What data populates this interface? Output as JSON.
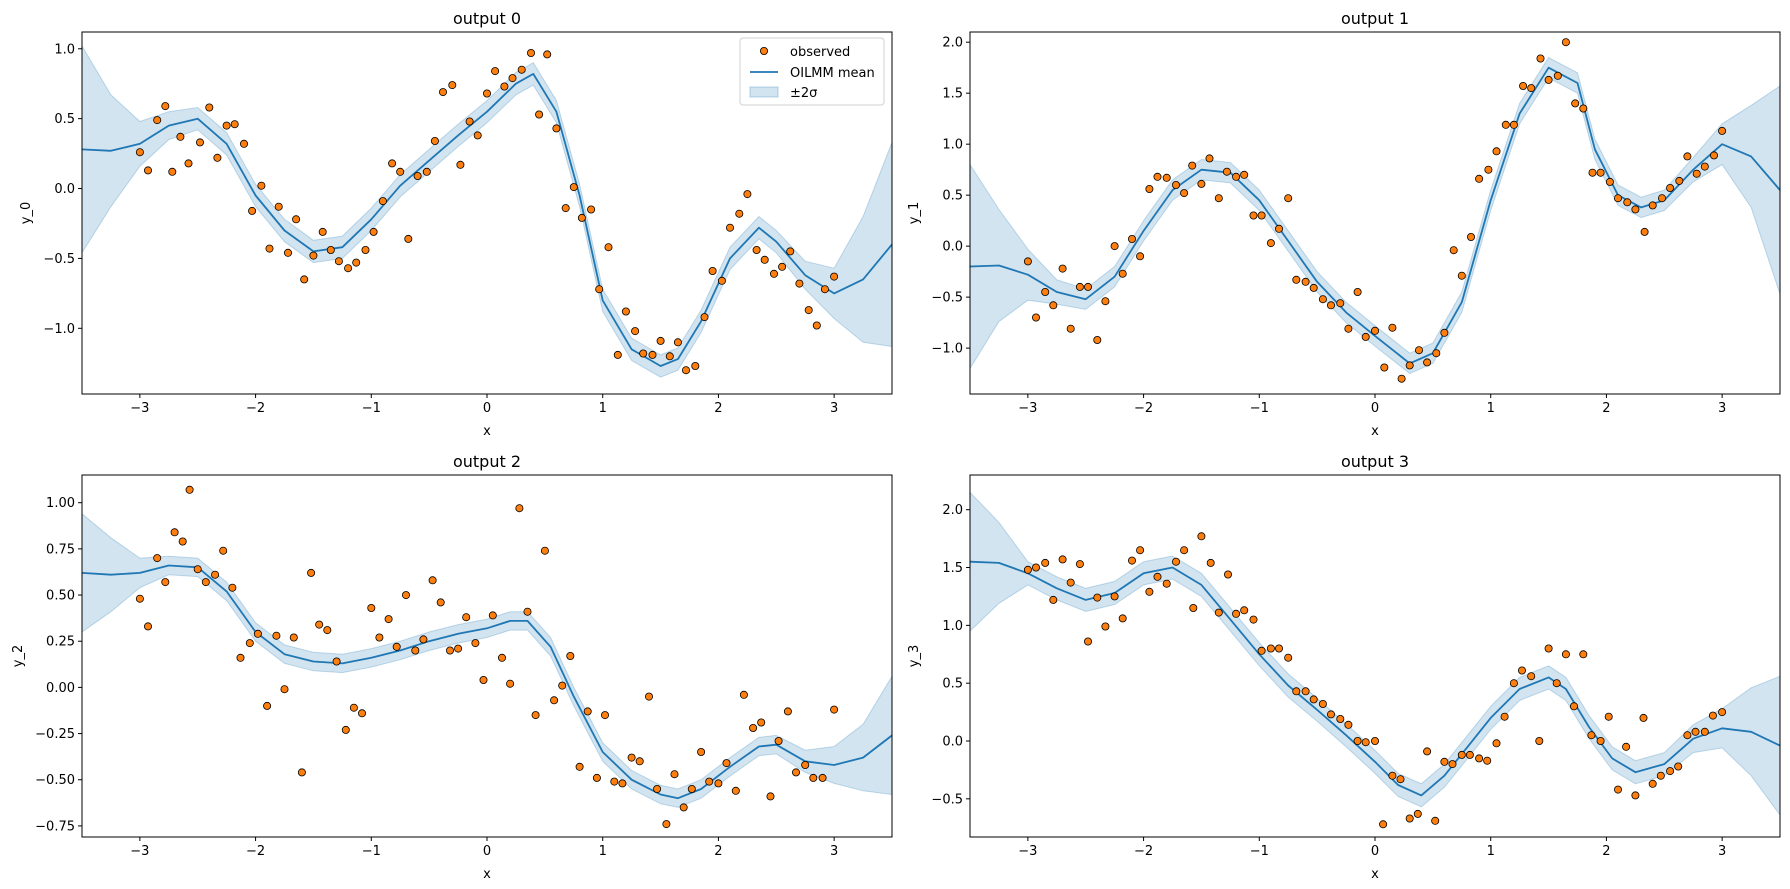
{
  "legend": {
    "observed": "observed",
    "mean": "OILMM mean",
    "band": "±2σ"
  },
  "colors": {
    "mean": "#1f77b4",
    "band": "#1f77b4",
    "observed_fill": "#ff7f0e",
    "observed_edge": "#000000"
  },
  "chart_data": [
    {
      "type": "line",
      "title": "output 0",
      "xlabel": "x",
      "ylabel": "y_0",
      "xlim": [
        -3.5,
        3.5
      ],
      "ylim": [
        -1.47,
        1.12
      ],
      "xticks": [
        -3,
        -2,
        -1,
        0,
        1,
        2,
        3
      ],
      "yticks": [
        -1.0,
        -0.5,
        0.0,
        0.5,
        1.0
      ],
      "ytick_labels": [
        "−1.0",
        "−0.5",
        "0.0",
        "0.5",
        "1.0"
      ],
      "legend_position": "upper right",
      "mean": {
        "x": [
          -3.5,
          -3.25,
          -3.0,
          -2.75,
          -2.5,
          -2.25,
          -2.0,
          -1.75,
          -1.5,
          -1.25,
          -1.0,
          -0.75,
          -0.5,
          -0.25,
          0.0,
          0.25,
          0.4,
          0.6,
          0.8,
          1.0,
          1.25,
          1.5,
          1.65,
          1.85,
          2.1,
          2.35,
          2.5,
          2.75,
          3.0,
          3.25,
          3.5
        ],
        "y": [
          0.28,
          0.27,
          0.32,
          0.45,
          0.5,
          0.32,
          -0.05,
          -0.3,
          -0.45,
          -0.42,
          -0.22,
          0.02,
          0.2,
          0.38,
          0.55,
          0.75,
          0.82,
          0.55,
          -0.05,
          -0.8,
          -1.15,
          -1.27,
          -1.22,
          -0.95,
          -0.5,
          -0.28,
          -0.38,
          -0.62,
          -0.75,
          -0.65,
          -0.4
        ]
      },
      "band_halfwidth": [
        0.74,
        0.4,
        0.16,
        0.1,
        0.08,
        0.08,
        0.08,
        0.08,
        0.08,
        0.08,
        0.08,
        0.08,
        0.08,
        0.08,
        0.08,
        0.08,
        0.08,
        0.08,
        0.08,
        0.08,
        0.08,
        0.08,
        0.08,
        0.08,
        0.08,
        0.08,
        0.08,
        0.1,
        0.18,
        0.45,
        0.73
      ],
      "points": {
        "x": [
          -3.0,
          -2.93,
          -2.85,
          -2.78,
          -2.72,
          -2.65,
          -2.58,
          -2.48,
          -2.4,
          -2.33,
          -2.25,
          -2.18,
          -2.1,
          -2.03,
          -1.95,
          -1.88,
          -1.8,
          -1.72,
          -1.65,
          -1.58,
          -1.5,
          -1.42,
          -1.35,
          -1.28,
          -1.2,
          -1.13,
          -1.05,
          -0.98,
          -0.9,
          -0.82,
          -0.75,
          -0.68,
          -0.6,
          -0.52,
          -0.45,
          -0.38,
          -0.3,
          -0.23,
          -0.15,
          -0.08,
          0.0,
          0.07,
          0.15,
          0.22,
          0.3,
          0.38,
          0.45,
          0.52,
          0.6,
          0.68,
          0.75,
          0.82,
          0.9,
          0.97,
          1.05,
          1.13,
          1.2,
          1.28,
          1.35,
          1.43,
          1.5,
          1.58,
          1.65,
          1.72,
          1.8,
          1.88,
          1.95,
          2.03,
          2.1,
          2.18,
          2.25,
          2.33,
          2.4,
          2.48,
          2.55,
          2.62,
          2.7,
          2.78,
          2.85,
          2.92,
          3.0
        ],
        "y": [
          0.26,
          0.13,
          0.49,
          0.59,
          0.12,
          0.37,
          0.18,
          0.33,
          0.58,
          0.22,
          0.45,
          0.46,
          0.32,
          -0.16,
          0.02,
          -0.43,
          -0.13,
          -0.46,
          -0.22,
          -0.65,
          -0.48,
          -0.31,
          -0.44,
          -0.52,
          -0.57,
          -0.53,
          -0.44,
          -0.31,
          -0.09,
          0.18,
          0.12,
          -0.36,
          0.09,
          0.12,
          0.34,
          0.69,
          0.74,
          0.17,
          0.48,
          0.38,
          0.68,
          0.84,
          0.73,
          0.79,
          0.85,
          0.97,
          0.53,
          0.96,
          0.43,
          -0.14,
          0.01,
          -0.21,
          -0.15,
          -0.72,
          -0.42,
          -1.19,
          -0.88,
          -1.02,
          -1.18,
          -1.19,
          -1.09,
          -1.2,
          -1.1,
          -1.3,
          -1.27,
          -0.92,
          -0.59,
          -0.66,
          -0.28,
          -0.18,
          -0.04,
          -0.44,
          -0.51,
          -0.61,
          -0.56,
          -0.45,
          -0.68,
          -0.87,
          -0.98,
          -0.72,
          -0.63
        ]
      }
    },
    {
      "type": "line",
      "title": "output 1",
      "xlabel": "x",
      "ylabel": "y_1",
      "xlim": [
        -3.5,
        3.5
      ],
      "ylim": [
        -1.45,
        2.1
      ],
      "xticks": [
        -3,
        -2,
        -1,
        0,
        1,
        2,
        3
      ],
      "yticks": [
        -1.0,
        -0.5,
        0.0,
        0.5,
        1.0,
        1.5,
        2.0
      ],
      "ytick_labels": [
        "−1.0",
        "−0.5",
        "0.0",
        "0.5",
        "1.0",
        "1.5",
        "2.0"
      ],
      "mean": {
        "x": [
          -3.5,
          -3.25,
          -3.0,
          -2.75,
          -2.5,
          -2.25,
          -2.0,
          -1.75,
          -1.5,
          -1.25,
          -1.0,
          -0.75,
          -0.5,
          -0.25,
          0.0,
          0.3,
          0.5,
          0.75,
          1.0,
          1.25,
          1.5,
          1.75,
          1.9,
          2.1,
          2.3,
          2.5,
          2.75,
          3.0,
          3.25,
          3.5
        ],
        "y": [
          -0.2,
          -0.19,
          -0.28,
          -0.45,
          -0.52,
          -0.3,
          0.15,
          0.55,
          0.75,
          0.72,
          0.45,
          0.05,
          -0.35,
          -0.65,
          -0.88,
          -1.15,
          -1.05,
          -0.55,
          0.45,
          1.3,
          1.75,
          1.6,
          0.95,
          0.5,
          0.38,
          0.45,
          0.75,
          1.0,
          0.88,
          0.55
        ]
      },
      "band_halfwidth": [
        1.0,
        0.55,
        0.25,
        0.12,
        0.1,
        0.1,
        0.1,
        0.1,
        0.1,
        0.1,
        0.1,
        0.1,
        0.1,
        0.1,
        0.1,
        0.1,
        0.1,
        0.1,
        0.1,
        0.1,
        0.1,
        0.1,
        0.1,
        0.1,
        0.1,
        0.1,
        0.12,
        0.2,
        0.5,
        1.02
      ],
      "points": {
        "x": [
          -3.0,
          -2.93,
          -2.85,
          -2.78,
          -2.7,
          -2.63,
          -2.55,
          -2.48,
          -2.4,
          -2.33,
          -2.25,
          -2.18,
          -2.1,
          -2.03,
          -1.95,
          -1.88,
          -1.8,
          -1.72,
          -1.65,
          -1.58,
          -1.5,
          -1.43,
          -1.35,
          -1.28,
          -1.2,
          -1.13,
          -1.05,
          -0.98,
          -0.9,
          -0.83,
          -0.75,
          -0.68,
          -0.6,
          -0.53,
          -0.45,
          -0.38,
          -0.3,
          -0.23,
          -0.15,
          -0.08,
          0.0,
          0.08,
          0.15,
          0.23,
          0.3,
          0.38,
          0.45,
          0.53,
          0.6,
          0.68,
          0.75,
          0.83,
          0.9,
          0.98,
          1.05,
          1.13,
          1.2,
          1.28,
          1.35,
          1.43,
          1.5,
          1.58,
          1.65,
          1.73,
          1.8,
          1.88,
          1.95,
          2.03,
          2.1,
          2.18,
          2.25,
          2.33,
          2.4,
          2.48,
          2.55,
          2.63,
          2.7,
          2.78,
          2.85,
          2.93,
          3.0
        ],
        "y": [
          -0.15,
          -0.7,
          -0.45,
          -0.58,
          -0.22,
          -0.81,
          -0.4,
          -0.4,
          -0.92,
          -0.54,
          0.0,
          -0.27,
          0.07,
          -0.1,
          0.56,
          0.68,
          0.67,
          0.6,
          0.52,
          0.79,
          0.61,
          0.86,
          0.47,
          0.73,
          0.68,
          0.7,
          0.3,
          0.3,
          0.03,
          0.17,
          0.47,
          -0.33,
          -0.35,
          -0.41,
          -0.52,
          -0.58,
          -0.56,
          -0.81,
          -0.45,
          -0.89,
          -0.83,
          -1.19,
          -0.8,
          -1.3,
          -1.17,
          -1.02,
          -1.14,
          -1.05,
          -0.85,
          -0.04,
          -0.29,
          0.09,
          0.66,
          0.75,
          0.93,
          1.19,
          1.19,
          1.57,
          1.55,
          1.84,
          1.63,
          1.67,
          2.0,
          1.4,
          1.35,
          0.72,
          0.72,
          0.63,
          0.47,
          0.43,
          0.36,
          0.14,
          0.4,
          0.47,
          0.57,
          0.64,
          0.88,
          0.71,
          0.78,
          0.89,
          1.13
        ]
      }
    },
    {
      "type": "line",
      "title": "output 2",
      "xlabel": "x",
      "ylabel": "y_2",
      "xlim": [
        -3.5,
        3.5
      ],
      "ylim": [
        -0.81,
        1.15
      ],
      "xticks": [
        -3,
        -2,
        -1,
        0,
        1,
        2,
        3
      ],
      "yticks": [
        -0.75,
        -0.5,
        -0.25,
        0.0,
        0.25,
        0.5,
        0.75,
        1.0
      ],
      "ytick_labels": [
        "−0.75",
        "−0.50",
        "−0.25",
        "0.00",
        "0.25",
        "0.50",
        "0.75",
        "1.00"
      ],
      "mean": {
        "x": [
          -3.5,
          -3.25,
          -3.0,
          -2.75,
          -2.5,
          -2.25,
          -2.0,
          -1.75,
          -1.5,
          -1.25,
          -1.0,
          -0.75,
          -0.5,
          -0.25,
          0.0,
          0.2,
          0.35,
          0.55,
          0.75,
          1.0,
          1.25,
          1.5,
          1.65,
          1.85,
          2.1,
          2.35,
          2.5,
          2.75,
          3.0,
          3.25,
          3.5
        ],
        "y": [
          0.62,
          0.61,
          0.62,
          0.66,
          0.65,
          0.52,
          0.3,
          0.18,
          0.14,
          0.13,
          0.16,
          0.2,
          0.25,
          0.29,
          0.32,
          0.36,
          0.36,
          0.22,
          -0.05,
          -0.35,
          -0.5,
          -0.58,
          -0.6,
          -0.55,
          -0.43,
          -0.32,
          -0.31,
          -0.4,
          -0.42,
          -0.38,
          -0.26
        ]
      },
      "band_halfwidth": [
        0.32,
        0.2,
        0.08,
        0.05,
        0.05,
        0.05,
        0.05,
        0.05,
        0.05,
        0.05,
        0.05,
        0.05,
        0.05,
        0.05,
        0.05,
        0.05,
        0.05,
        0.05,
        0.05,
        0.05,
        0.05,
        0.05,
        0.05,
        0.05,
        0.05,
        0.05,
        0.05,
        0.06,
        0.1,
        0.18,
        0.32
      ],
      "points": {
        "x": [
          -3.0,
          -2.93,
          -2.85,
          -2.78,
          -2.7,
          -2.63,
          -2.57,
          -2.5,
          -2.43,
          -2.35,
          -2.28,
          -2.2,
          -2.13,
          -2.05,
          -1.98,
          -1.9,
          -1.82,
          -1.75,
          -1.67,
          -1.6,
          -1.52,
          -1.45,
          -1.38,
          -1.3,
          -1.22,
          -1.15,
          -1.08,
          -1.0,
          -0.93,
          -0.85,
          -0.78,
          -0.7,
          -0.62,
          -0.55,
          -0.47,
          -0.4,
          -0.32,
          -0.25,
          -0.18,
          -0.1,
          -0.03,
          0.05,
          0.13,
          0.2,
          0.28,
          0.35,
          0.42,
          0.5,
          0.58,
          0.65,
          0.72,
          0.8,
          0.87,
          0.95,
          1.02,
          1.1,
          1.17,
          1.25,
          1.32,
          1.4,
          1.47,
          1.55,
          1.62,
          1.7,
          1.77,
          1.85,
          1.92,
          2.0,
          2.07,
          2.15,
          2.22,
          2.3,
          2.37,
          2.45,
          2.52,
          2.6,
          2.67,
          2.75,
          2.82,
          2.9,
          3.0
        ],
        "y": [
          0.48,
          0.33,
          0.7,
          0.57,
          0.84,
          0.79,
          1.07,
          0.64,
          0.57,
          0.61,
          0.74,
          0.54,
          0.16,
          0.24,
          0.29,
          -0.1,
          0.28,
          -0.01,
          0.27,
          -0.46,
          0.62,
          0.34,
          0.31,
          0.14,
          -0.23,
          -0.11,
          -0.14,
          0.43,
          0.27,
          0.37,
          0.22,
          0.5,
          0.2,
          0.26,
          0.58,
          0.46,
          0.2,
          0.21,
          0.38,
          0.24,
          0.04,
          0.39,
          0.16,
          0.02,
          0.97,
          0.41,
          -0.15,
          0.74,
          -0.07,
          0.01,
          0.17,
          -0.43,
          -0.13,
          -0.49,
          -0.15,
          -0.51,
          -0.52,
          -0.38,
          -0.4,
          -0.05,
          -0.55,
          -0.74,
          -0.47,
          -0.65,
          -0.55,
          -0.35,
          -0.51,
          -0.52,
          -0.41,
          -0.56,
          -0.04,
          -0.22,
          -0.19,
          -0.59,
          -0.29,
          -0.13,
          -0.46,
          -0.42,
          -0.49,
          -0.49,
          -0.12
        ]
      }
    },
    {
      "type": "line",
      "title": "output 3",
      "xlabel": "x",
      "ylabel": "y_3",
      "xlim": [
        -3.5,
        3.5
      ],
      "ylim": [
        -0.83,
        2.3
      ],
      "xticks": [
        -3,
        -2,
        -1,
        0,
        1,
        2,
        3
      ],
      "yticks": [
        -0.5,
        0.0,
        0.5,
        1.0,
        1.5,
        2.0
      ],
      "ytick_labels": [
        "−0.5",
        "0.0",
        "0.5",
        "1.0",
        "1.5",
        "2.0"
      ],
      "mean": {
        "x": [
          -3.5,
          -3.25,
          -3.0,
          -2.75,
          -2.5,
          -2.25,
          -2.0,
          -1.75,
          -1.5,
          -1.25,
          -1.0,
          -0.75,
          -0.5,
          -0.25,
          0.0,
          0.2,
          0.4,
          0.6,
          0.8,
          1.0,
          1.25,
          1.5,
          1.65,
          1.85,
          2.05,
          2.25,
          2.5,
          2.75,
          3.0,
          3.25,
          3.5
        ],
        "y": [
          1.55,
          1.54,
          1.45,
          1.32,
          1.22,
          1.28,
          1.45,
          1.5,
          1.35,
          1.05,
          0.75,
          0.48,
          0.27,
          0.05,
          -0.18,
          -0.38,
          -0.47,
          -0.3,
          -0.05,
          0.2,
          0.45,
          0.55,
          0.45,
          0.12,
          -0.15,
          -0.27,
          -0.2,
          0.02,
          0.11,
          0.08,
          -0.04
        ]
      },
      "band_halfwidth": [
        0.6,
        0.35,
        0.1,
        0.1,
        0.1,
        0.1,
        0.1,
        0.1,
        0.1,
        0.1,
        0.1,
        0.1,
        0.1,
        0.1,
        0.1,
        0.1,
        0.1,
        0.1,
        0.1,
        0.1,
        0.1,
        0.1,
        0.1,
        0.1,
        0.1,
        0.1,
        0.1,
        0.12,
        0.17,
        0.38,
        0.6
      ],
      "points": {
        "x": [
          -3.0,
          -2.93,
          -2.85,
          -2.78,
          -2.7,
          -2.63,
          -2.55,
          -2.48,
          -2.4,
          -2.33,
          -2.25,
          -2.18,
          -2.1,
          -2.03,
          -1.95,
          -1.88,
          -1.8,
          -1.72,
          -1.65,
          -1.57,
          -1.5,
          -1.42,
          -1.35,
          -1.27,
          -1.2,
          -1.13,
          -1.05,
          -0.98,
          -0.9,
          -0.83,
          -0.75,
          -0.68,
          -0.6,
          -0.53,
          -0.45,
          -0.38,
          -0.3,
          -0.23,
          -0.15,
          -0.08,
          0.0,
          0.07,
          0.15,
          0.22,
          0.3,
          0.37,
          0.45,
          0.52,
          0.6,
          0.67,
          0.75,
          0.82,
          0.9,
          0.97,
          1.05,
          1.12,
          1.2,
          1.27,
          1.35,
          1.42,
          1.5,
          1.57,
          1.65,
          1.72,
          1.8,
          1.87,
          1.95,
          2.02,
          2.1,
          2.17,
          2.25,
          2.32,
          2.4,
          2.47,
          2.55,
          2.62,
          2.7,
          2.77,
          2.85,
          2.92,
          3.0
        ],
        "y": [
          1.48,
          1.5,
          1.54,
          1.22,
          1.57,
          1.37,
          1.53,
          0.86,
          1.24,
          0.99,
          1.25,
          1.06,
          1.56,
          1.65,
          1.29,
          1.42,
          1.36,
          1.55,
          1.65,
          1.15,
          1.77,
          1.54,
          1.11,
          1.44,
          1.1,
          1.13,
          1.05,
          0.78,
          0.8,
          0.8,
          0.72,
          0.43,
          0.43,
          0.36,
          0.32,
          0.23,
          0.19,
          0.14,
          0.0,
          -0.01,
          0.0,
          -0.72,
          -0.3,
          -0.33,
          -0.67,
          -0.63,
          -0.09,
          -0.69,
          -0.18,
          -0.2,
          -0.12,
          -0.12,
          -0.15,
          -0.17,
          -0.02,
          0.21,
          0.5,
          0.61,
          0.56,
          0.0,
          0.8,
          0.5,
          0.75,
          0.3,
          0.75,
          0.05,
          0.0,
          0.21,
          -0.42,
          -0.05,
          -0.47,
          0.2,
          -0.37,
          -0.3,
          -0.26,
          -0.22,
          0.05,
          0.08,
          0.08,
          0.22,
          0.25
        ]
      }
    }
  ]
}
